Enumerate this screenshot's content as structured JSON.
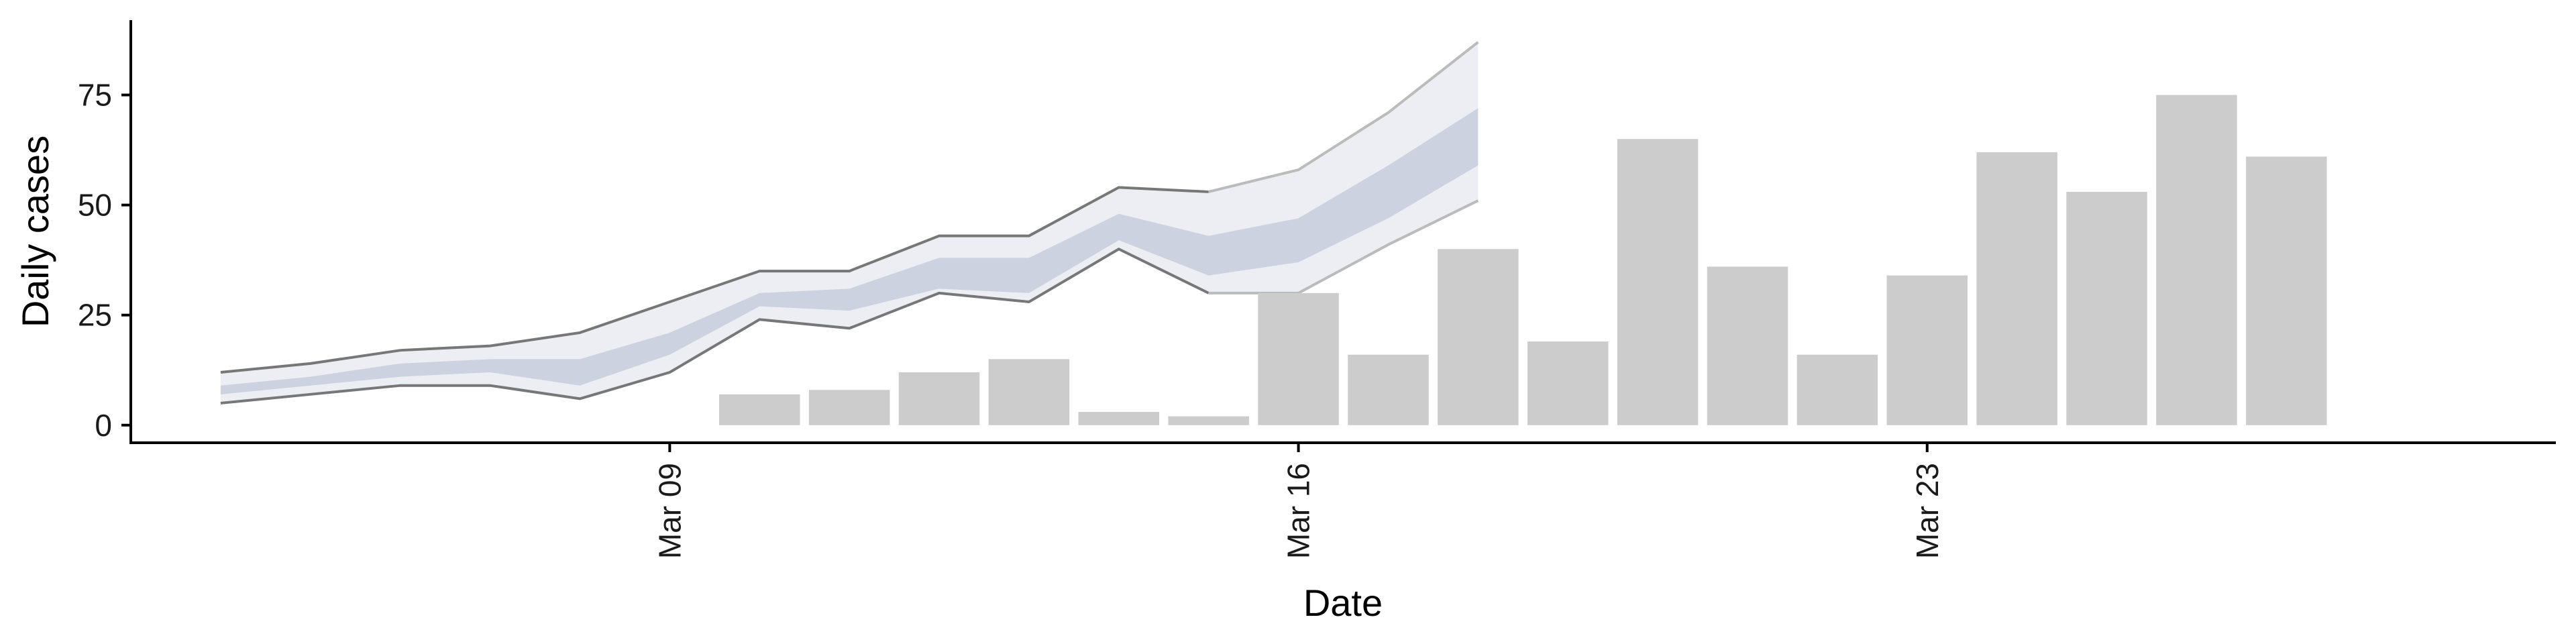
{
  "chart_data": {
    "type": "bar",
    "title": "",
    "xlabel": "Date",
    "ylabel": "Daily cases",
    "x_ticks": [
      {
        "date": "2020-03-09",
        "label": "Mar 09"
      },
      {
        "date": "2020-03-16",
        "label": "Mar 16"
      },
      {
        "date": "2020-03-23",
        "label": "Mar 23"
      }
    ],
    "y_ticks": [
      0,
      25,
      50,
      75
    ],
    "ylim": [
      -4,
      92
    ],
    "xlim": [
      "2020-03-03",
      "2020-03-30"
    ],
    "grid": false,
    "legend": "none",
    "bars": {
      "x": [
        "2020-03-10",
        "2020-03-11",
        "2020-03-12",
        "2020-03-13",
        "2020-03-14",
        "2020-03-15",
        "2020-03-16",
        "2020-03-17",
        "2020-03-18",
        "2020-03-19",
        "2020-03-20",
        "2020-03-21",
        "2020-03-22",
        "2020-03-23",
        "2020-03-24",
        "2020-03-25",
        "2020-03-26",
        "2020-03-27"
      ],
      "values": [
        7,
        8,
        12,
        15,
        3,
        2,
        30,
        16,
        40,
        19,
        65,
        36,
        16,
        34,
        62,
        53,
        75,
        61
      ],
      "color": "#cccccc"
    },
    "forecast": {
      "x": [
        "2020-03-04",
        "2020-03-05",
        "2020-03-06",
        "2020-03-07",
        "2020-03-08",
        "2020-03-09",
        "2020-03-10",
        "2020-03-11",
        "2020-03-12",
        "2020-03-13",
        "2020-03-14",
        "2020-03-15",
        "2020-03-16",
        "2020-03-17",
        "2020-03-18",
        "2020-03-19"
      ],
      "lower_90": [
        5,
        7,
        9,
        9,
        6,
        12,
        24,
        22,
        30,
        28,
        40,
        30,
        30,
        41,
        51,
        null
      ],
      "upper_90": [
        12,
        14,
        17,
        18,
        21,
        28,
        35,
        35,
        43,
        43,
        54,
        53,
        58,
        71,
        87,
        null
      ],
      "lower_50": [
        7,
        9,
        11,
        12,
        9,
        16,
        27,
        26,
        31,
        30,
        42,
        34,
        37,
        47,
        59,
        null
      ],
      "upper_50": [
        9,
        11,
        14,
        15,
        15,
        21,
        30,
        31,
        38,
        38,
        48,
        43,
        47,
        59,
        72,
        null
      ],
      "outer_color": "#eceef3",
      "inner_color": "#ccd2df",
      "line_color": "#777777",
      "line_color_faded": "#bbbbbb"
    }
  }
}
